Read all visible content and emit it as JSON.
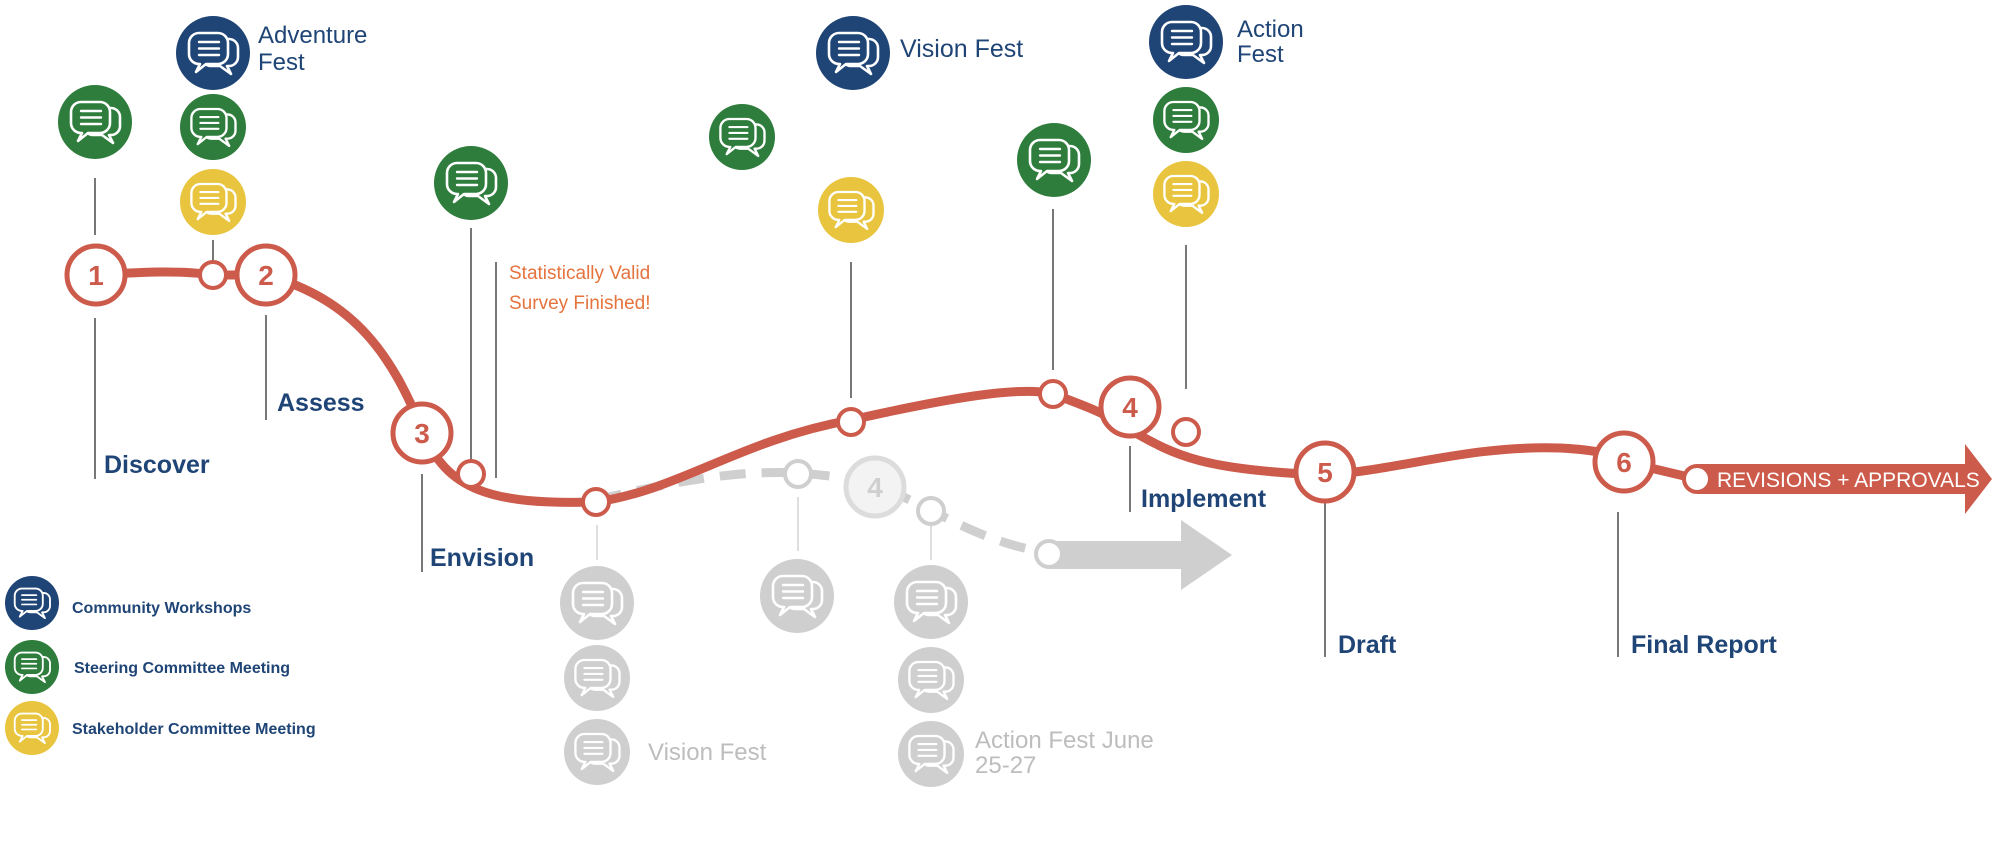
{
  "colors": {
    "path": "#cd5b4b",
    "ghost": "#cfcfcf",
    "ghost_text": "#bdbdbd",
    "navy": "#1f4476",
    "green": "#2e7d3c",
    "yellow": "#e8c43f",
    "orange": "#e5733d",
    "white": "#ffffff"
  },
  "icon_name": "speech-bubbles-icon",
  "milestones": [
    {
      "id": "1",
      "label": "1"
    },
    {
      "id": "2",
      "label": "2"
    },
    {
      "id": "3",
      "label": "3"
    },
    {
      "id": "4",
      "label": "4"
    },
    {
      "id": "5",
      "label": "5"
    },
    {
      "id": "6",
      "label": "6"
    },
    {
      "id": "ghost-4",
      "label": "4"
    }
  ],
  "phases": [
    {
      "id": "discover",
      "label": "Discover"
    },
    {
      "id": "assess",
      "label": "Assess"
    },
    {
      "id": "envision",
      "label": "Envision"
    },
    {
      "id": "implement",
      "label": "Implement"
    },
    {
      "id": "draft",
      "label": "Draft"
    },
    {
      "id": "final-report",
      "label": "Final Report"
    }
  ],
  "event_labels": [
    {
      "id": "adventure-fest",
      "lines": [
        "Adventure",
        "Fest"
      ]
    },
    {
      "id": "vision-fest",
      "lines": [
        "Vision Fest"
      ]
    },
    {
      "id": "action-fest",
      "lines": [
        "Action",
        "Fest"
      ]
    },
    {
      "id": "survey",
      "lines": [
        "Statistically Valid",
        "Survey Finished!"
      ]
    },
    {
      "id": "ghost-vision-fest",
      "lines": [
        "Vision Fest"
      ]
    },
    {
      "id": "ghost-action-fest",
      "lines": [
        "Action Fest June",
        "25-27"
      ]
    }
  ],
  "arrow_label": "REVISIONS + APPROVALS",
  "legend": [
    {
      "id": "community-workshops",
      "label": "Community Workshops",
      "color": "#1f4476"
    },
    {
      "id": "steering-committee",
      "label": "Steering Committee Meeting",
      "color": "#2e7d3c"
    },
    {
      "id": "stakeholder-committee",
      "label": "Stakeholder Committee Meeting",
      "color": "#e8c43f"
    }
  ]
}
